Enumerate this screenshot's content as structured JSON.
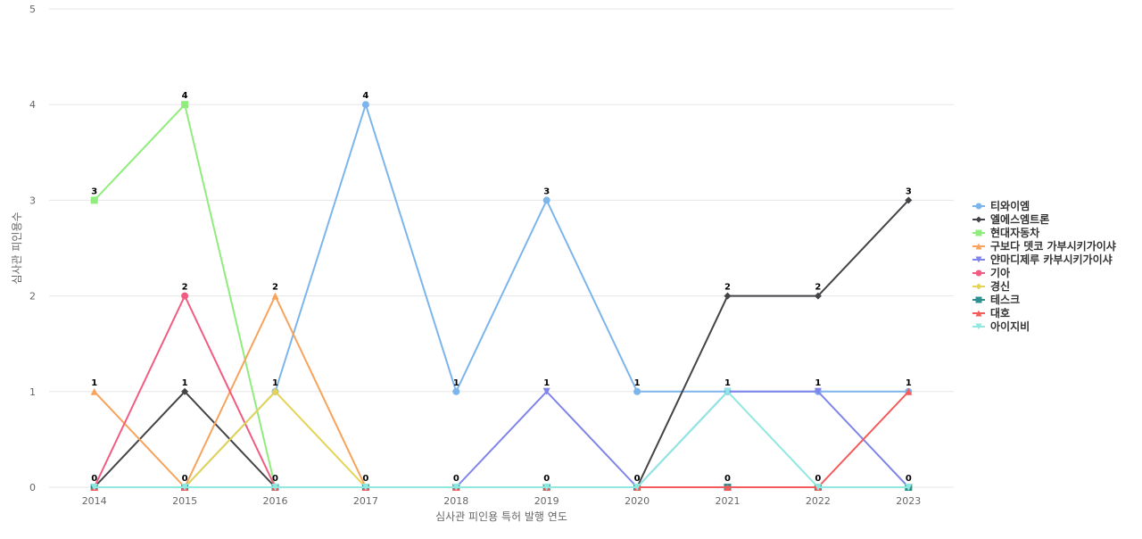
{
  "chart_data": {
    "type": "line",
    "title": "",
    "xlabel": "심사관 피인용 특허 발행 연도",
    "ylabel": "심사관 피인용수",
    "ylim": [
      0,
      5
    ],
    "yticks": [
      0,
      1,
      2,
      3,
      4,
      5
    ],
    "grid": true,
    "legend_position": "right",
    "categories": [
      "2014",
      "2015",
      "2016",
      "2017",
      "2018",
      "2019",
      "2020",
      "2021",
      "2022",
      "2023"
    ],
    "data_labels": [
      "3",
      "4",
      "1",
      "4",
      "1",
      "3",
      "1",
      "1",
      "1",
      "3",
      "1",
      "2",
      "2",
      "0",
      "0",
      "0",
      "0",
      "0",
      "0",
      "0",
      "0",
      "0",
      "1",
      "1",
      "1",
      "2",
      "1",
      "1",
      "1",
      "2",
      "2",
      "1"
    ],
    "series": [
      {
        "name": "티와이엠",
        "color": "#7cb5ec",
        "marker": "circle",
        "values": [
          0,
          0,
          1,
          4,
          1,
          3,
          1,
          1,
          1,
          1
        ]
      },
      {
        "name": "엘에스엠트론",
        "color": "#434348",
        "marker": "diamond",
        "values": [
          0,
          1,
          0,
          0,
          0,
          0,
          0,
          2,
          2,
          3
        ]
      },
      {
        "name": "현대자동차",
        "color": "#90ed7d",
        "marker": "square",
        "values": [
          3,
          4,
          0,
          0,
          0,
          0,
          0,
          0,
          0,
          0
        ]
      },
      {
        "name": "구보다 뎃코 가부시키가이샤",
        "color": "#f7a35c",
        "marker": "triangle",
        "values": [
          1,
          0,
          2,
          0,
          0,
          0,
          0,
          0,
          0,
          0
        ]
      },
      {
        "name": "얀마디제루 카부시키가이샤",
        "color": "#8085e9",
        "marker": "triangle-down",
        "values": [
          0,
          0,
          0,
          0,
          0,
          1,
          0,
          1,
          1,
          0
        ]
      },
      {
        "name": "기아",
        "color": "#f15c80",
        "marker": "circle",
        "values": [
          0,
          2,
          0,
          0,
          0,
          0,
          0,
          0,
          0,
          0
        ]
      },
      {
        "name": "경신",
        "color": "#e4d354",
        "marker": "diamond",
        "values": [
          0,
          0,
          1,
          0,
          0,
          0,
          0,
          0,
          0,
          0
        ]
      },
      {
        "name": "테스크",
        "color": "#2b908f",
        "marker": "square",
        "values": [
          0,
          0,
          0,
          0,
          0,
          0,
          0,
          0,
          0,
          0
        ]
      },
      {
        "name": "대호",
        "color": "#f45b5b",
        "marker": "triangle",
        "values": [
          0,
          0,
          0,
          0,
          0,
          0,
          0,
          0,
          0,
          1
        ]
      },
      {
        "name": "아이지비",
        "color": "#91e8e1",
        "marker": "triangle-down",
        "values": [
          0,
          0,
          0,
          0,
          0,
          0,
          0,
          1,
          0,
          0
        ]
      }
    ]
  }
}
